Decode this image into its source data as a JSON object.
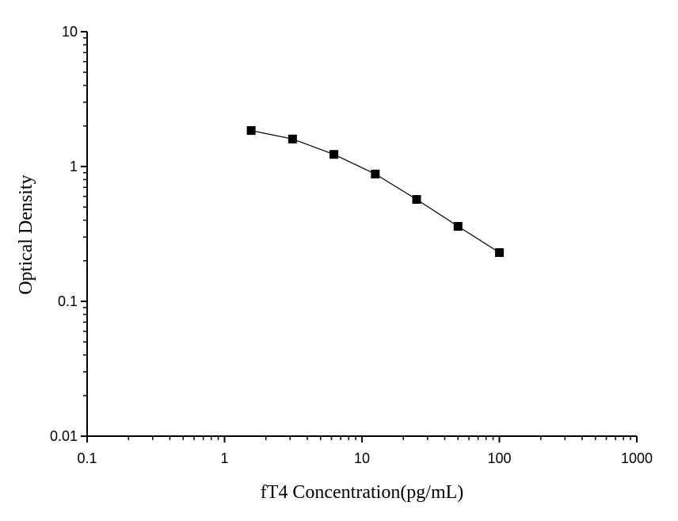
{
  "chart_data": {
    "type": "scatter",
    "xlabel": "fT4 Concentration(pg/mL)",
    "ylabel": "Optical Density",
    "x_scale": "log",
    "y_scale": "log",
    "xlim": [
      0.1,
      1000
    ],
    "ylim": [
      0.01,
      10
    ],
    "x_ticks": [
      "0.1",
      "1",
      "10",
      "100",
      "1000"
    ],
    "y_ticks": [
      "0.01",
      "0.1",
      "1",
      "10"
    ],
    "grid": false,
    "legend": "none",
    "marker": "square",
    "line": "connected",
    "color": "#000000",
    "series": [
      {
        "x": [
          1.5625,
          3.125,
          6.25,
          12.5,
          25,
          50,
          100
        ],
        "y": [
          1.85,
          1.6,
          1.23,
          0.88,
          0.57,
          0.36,
          0.23
        ]
      }
    ]
  }
}
